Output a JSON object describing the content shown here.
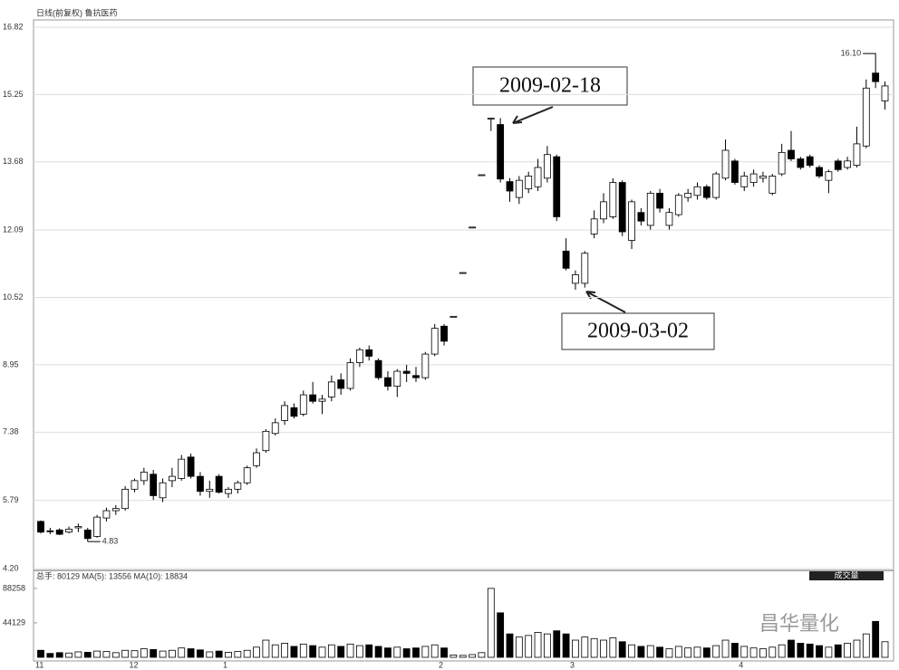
{
  "chart_data": {
    "type": "candlestick",
    "title": "日线(前复权) 鲁抗医药",
    "categories": [
      "11",
      null,
      null,
      null,
      null,
      null,
      null,
      null,
      null,
      null,
      "12",
      null,
      null,
      null,
      null,
      null,
      null,
      null,
      null,
      null,
      "1",
      null,
      null,
      null,
      null,
      null,
      null,
      null,
      null,
      null,
      null,
      null,
      null,
      null,
      null,
      null,
      null,
      null,
      null,
      null,
      null,
      null,
      null,
      "2",
      null,
      null,
      null,
      null,
      null,
      null,
      null,
      null,
      null,
      null,
      null,
      null,
      null,
      "3",
      null,
      null,
      null,
      null,
      null,
      null,
      null,
      null,
      null,
      null,
      null,
      null,
      null,
      null,
      null,
      null,
      null,
      "4",
      null,
      null,
      null,
      null,
      null,
      null,
      null,
      null,
      null,
      null,
      null,
      null,
      null,
      null,
      null
    ],
    "open": [
      5.3,
      5.08,
      5.1,
      5.05,
      5.15,
      5.1,
      4.95,
      5.38,
      5.55,
      5.6,
      6.05,
      6.25,
      6.4,
      5.85,
      6.25,
      6.3,
      6.8,
      6.35,
      6.0,
      6.35,
      5.95,
      6.05,
      6.2,
      6.6,
      6.95,
      7.35,
      7.65,
      7.95,
      7.8,
      8.25,
      8.1,
      8.2,
      8.6,
      8.4,
      9.0,
      9.3,
      9.05,
      8.65,
      8.45,
      8.8,
      8.7,
      8.65,
      9.2,
      9.85,
      10.08,
      11.1,
      12.16,
      13.38,
      14.7,
      14.55,
      13.22,
      12.85,
      13.05,
      13.1,
      13.3,
      13.8,
      11.6,
      10.85,
      10.85,
      12.0,
      12.35,
      12.4,
      13.2,
      11.85,
      12.5,
      12.2,
      12.95,
      12.2,
      12.45,
      12.85,
      12.9,
      13.1,
      12.85,
      13.3,
      13.7,
      13.1,
      13.2,
      13.3,
      12.95,
      13.4,
      13.95,
      13.75,
      13.8,
      13.55,
      13.25,
      13.7,
      13.55,
      13.6,
      14.05,
      15.75,
      15.1
    ],
    "high": [
      5.32,
      5.15,
      5.14,
      5.18,
      5.25,
      5.15,
      5.45,
      5.62,
      5.68,
      6.12,
      6.3,
      6.55,
      6.5,
      6.3,
      6.55,
      6.85,
      6.88,
      6.45,
      6.25,
      6.4,
      6.1,
      6.25,
      6.6,
      7.0,
      7.45,
      7.7,
      8.1,
      8.05,
      8.35,
      8.55,
      8.25,
      8.7,
      8.75,
      9.1,
      9.35,
      9.4,
      9.1,
      8.8,
      8.85,
      8.95,
      8.9,
      9.25,
      9.9,
      9.9,
      10.08,
      11.1,
      12.16,
      13.38,
      14.7,
      14.7,
      13.3,
      13.35,
      13.45,
      13.75,
      14.05,
      13.85,
      11.9,
      11.15,
      11.6,
      12.55,
      12.95,
      13.3,
      13.25,
      12.8,
      12.6,
      13.0,
      13.05,
      12.6,
      12.95,
      13.05,
      13.2,
      13.15,
      13.45,
      14.2,
      13.75,
      13.45,
      13.5,
      13.45,
      13.4,
      14.1,
      14.4,
      13.8,
      13.85,
      13.6,
      13.5,
      13.75,
      13.8,
      14.5,
      15.6,
      16.1,
      15.55
    ],
    "low": [
      5.02,
      5.0,
      4.98,
      5.02,
      5.05,
      4.83,
      4.92,
      5.3,
      5.45,
      5.55,
      5.98,
      6.15,
      5.8,
      5.75,
      6.1,
      6.25,
      6.3,
      5.9,
      5.85,
      5.95,
      5.85,
      5.95,
      6.15,
      6.55,
      6.9,
      7.3,
      7.55,
      7.7,
      7.75,
      8.05,
      7.8,
      8.1,
      8.25,
      8.35,
      8.9,
      9.05,
      8.6,
      8.35,
      8.2,
      8.55,
      8.55,
      8.6,
      9.15,
      9.4,
      10.08,
      11.1,
      12.16,
      13.38,
      14.4,
      13.2,
      12.75,
      12.7,
      12.95,
      13.0,
      13.2,
      12.3,
      11.15,
      10.7,
      10.75,
      11.9,
      12.25,
      12.35,
      11.95,
      11.65,
      12.2,
      12.1,
      12.5,
      12.1,
      12.4,
      12.75,
      12.8,
      12.8,
      12.8,
      13.25,
      13.15,
      13.0,
      13.1,
      13.2,
      12.9,
      13.35,
      13.7,
      13.5,
      13.55,
      13.3,
      12.95,
      13.45,
      13.5,
      13.55,
      14.0,
      15.4,
      14.9
    ],
    "close": [
      5.05,
      5.06,
      5.0,
      5.12,
      5.18,
      4.9,
      5.4,
      5.55,
      5.6,
      6.05,
      6.25,
      6.45,
      5.9,
      6.2,
      6.35,
      6.75,
      6.35,
      6.0,
      6.05,
      5.98,
      6.05,
      6.2,
      6.55,
      6.9,
      7.4,
      7.6,
      8.0,
      7.75,
      8.25,
      8.1,
      8.15,
      8.55,
      8.4,
      9.0,
      9.3,
      9.15,
      8.65,
      8.45,
      8.8,
      8.75,
      8.65,
      9.2,
      9.8,
      9.5,
      10.08,
      11.1,
      12.16,
      13.38,
      14.7,
      13.28,
      13.0,
      13.25,
      13.35,
      13.55,
      13.85,
      12.4,
      11.2,
      11.05,
      11.55,
      12.35,
      12.75,
      13.2,
      12.05,
      12.75,
      12.3,
      12.95,
      12.6,
      12.5,
      12.9,
      12.95,
      13.1,
      12.85,
      13.4,
      13.95,
      13.2,
      13.35,
      13.4,
      13.35,
      13.35,
      13.9,
      13.75,
      13.55,
      13.6,
      13.35,
      13.45,
      13.5,
      13.7,
      14.1,
      15.4,
      15.55,
      15.45
    ],
    "volume": [
      9000,
      5000,
      6000,
      5500,
      7000,
      6500,
      8000,
      7500,
      6000,
      9000,
      8500,
      11000,
      10000,
      8000,
      9000,
      12000,
      11000,
      9500,
      7000,
      8000,
      6500,
      7500,
      9000,
      13000,
      22000,
      16000,
      18000,
      14000,
      17000,
      15000,
      13000,
      16000,
      14000,
      17000,
      15000,
      16000,
      14000,
      12000,
      13000,
      11000,
      12000,
      14000,
      16000,
      12000,
      3000,
      2500,
      3500,
      6000,
      88258,
      57000,
      30000,
      26000,
      28000,
      32000,
      30000,
      34000,
      30000,
      22000,
      26000,
      24000,
      22000,
      25000,
      20000,
      16000,
      14000,
      15000,
      13000,
      11000,
      14000,
      12000,
      13000,
      12000,
      15000,
      22000,
      18000,
      14000,
      12000,
      11000,
      13000,
      16000,
      22000,
      18000,
      17000,
      15000,
      13000,
      16000,
      18000,
      22000,
      30000,
      46000,
      20000
    ],
    "ylim": [
      4.2,
      16.82
    ],
    "yticks": [
      {
        "value": 4.2,
        "label": "4.20"
      },
      5.79,
      7.38,
      8.95,
      10.52,
      12.09,
      13.68,
      15.25,
      16.82
    ],
    "volume_ylim": [
      0,
      109000
    ],
    "volume_yticks": [
      44129,
      88258
    ],
    "volume_header": "总手: 80129  MA(5): 13556  MA(10): 18834",
    "volume_button": "成交量",
    "max_label": {
      "value": 16.1,
      "label": "16.10"
    },
    "min_label": {
      "value": 4.83,
      "label": "4.83"
    },
    "annotations": [
      "2009-02-18",
      "2009-03-02"
    ],
    "watermark": "昌华量化",
    "up_color": "#ffffff",
    "down_color": "#000000",
    "grid": true
  }
}
